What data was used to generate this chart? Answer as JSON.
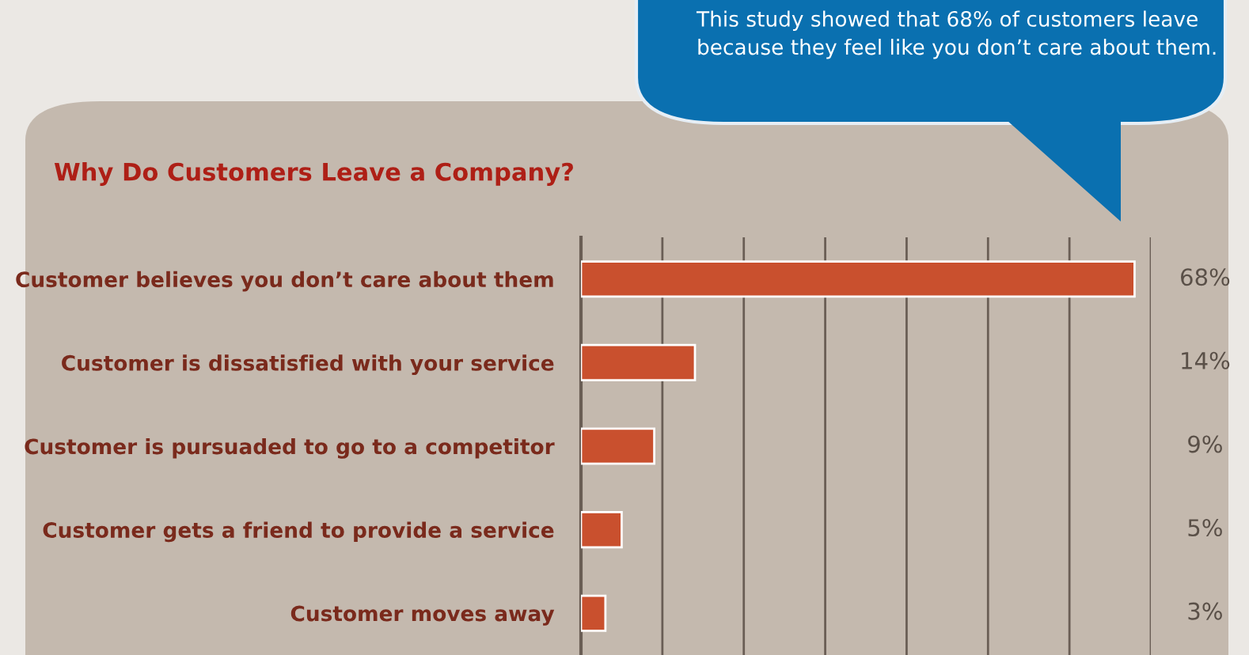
{
  "chart_data": {
    "type": "bar",
    "orientation": "horizontal",
    "title": "Why Do Customers Leave a Company?",
    "categories": [
      "Customer believes you don’t care about them",
      "Customer is dissatisfied with your service",
      "Customer is pursuaded to go to a competitor",
      "Customer gets a friend to provide a service",
      "Customer moves away"
    ],
    "values": [
      68,
      14,
      9,
      5,
      3
    ],
    "value_labels": [
      "68%",
      "14%",
      "9%",
      "5%",
      "3%"
    ],
    "color": "#c9502e",
    "xlim": [
      0,
      70
    ],
    "xticks": [
      {
        "value": 0,
        "label": null
      },
      {
        "value": 10,
        "label": null
      },
      {
        "value": 20,
        "label": null
      },
      {
        "value": 30,
        "label": null
      },
      {
        "value": 40,
        "label": null
      },
      {
        "value": 50,
        "label": null
      },
      {
        "value": 60,
        "label": null
      },
      {
        "value": 70,
        "label": null
      }
    ],
    "grid": "x",
    "tick_labels": "y",
    "annotations": [
      "This study showed that 68% of customers leave\nbecause they feel like you don’t care about them."
    ]
  }
}
